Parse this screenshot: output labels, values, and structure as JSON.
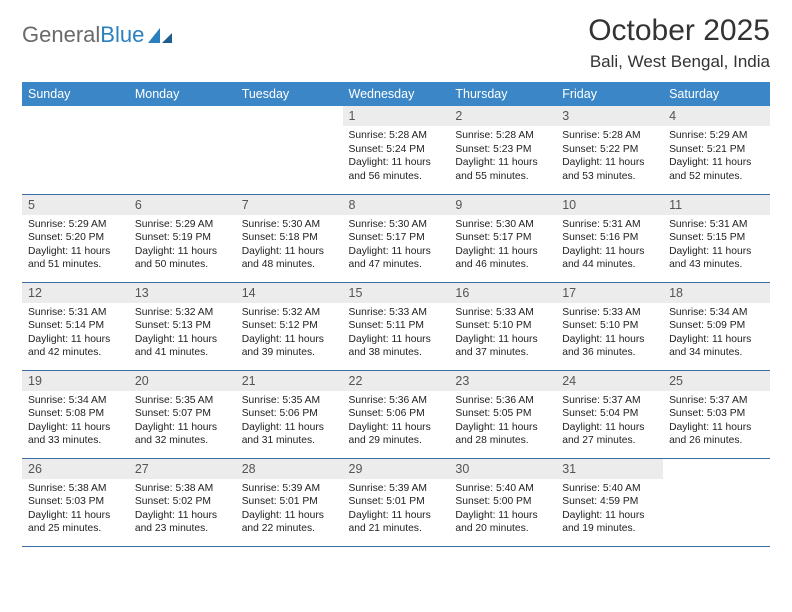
{
  "logo": {
    "text1": "General",
    "text2": "Blue"
  },
  "header": {
    "month": "October 2025",
    "location": "Bali, West Bengal, India"
  },
  "colors": {
    "header_bg": "#3b86c6",
    "header_fg": "#ffffff",
    "daynum_bg": "#ececec",
    "row_border": "#3b6da0",
    "logo_gray": "#6a6a6a",
    "logo_blue": "#2a7fbf"
  },
  "weekdays": [
    "Sunday",
    "Monday",
    "Tuesday",
    "Wednesday",
    "Thursday",
    "Friday",
    "Saturday"
  ],
  "weeks": [
    [
      {
        "n": "",
        "lines": []
      },
      {
        "n": "",
        "lines": []
      },
      {
        "n": "",
        "lines": []
      },
      {
        "n": "1",
        "lines": [
          "Sunrise: 5:28 AM",
          "Sunset: 5:24 PM",
          "Daylight: 11 hours",
          "and 56 minutes."
        ]
      },
      {
        "n": "2",
        "lines": [
          "Sunrise: 5:28 AM",
          "Sunset: 5:23 PM",
          "Daylight: 11 hours",
          "and 55 minutes."
        ]
      },
      {
        "n": "3",
        "lines": [
          "Sunrise: 5:28 AM",
          "Sunset: 5:22 PM",
          "Daylight: 11 hours",
          "and 53 minutes."
        ]
      },
      {
        "n": "4",
        "lines": [
          "Sunrise: 5:29 AM",
          "Sunset: 5:21 PM",
          "Daylight: 11 hours",
          "and 52 minutes."
        ]
      }
    ],
    [
      {
        "n": "5",
        "lines": [
          "Sunrise: 5:29 AM",
          "Sunset: 5:20 PM",
          "Daylight: 11 hours",
          "and 51 minutes."
        ]
      },
      {
        "n": "6",
        "lines": [
          "Sunrise: 5:29 AM",
          "Sunset: 5:19 PM",
          "Daylight: 11 hours",
          "and 50 minutes."
        ]
      },
      {
        "n": "7",
        "lines": [
          "Sunrise: 5:30 AM",
          "Sunset: 5:18 PM",
          "Daylight: 11 hours",
          "and 48 minutes."
        ]
      },
      {
        "n": "8",
        "lines": [
          "Sunrise: 5:30 AM",
          "Sunset: 5:17 PM",
          "Daylight: 11 hours",
          "and 47 minutes."
        ]
      },
      {
        "n": "9",
        "lines": [
          "Sunrise: 5:30 AM",
          "Sunset: 5:17 PM",
          "Daylight: 11 hours",
          "and 46 minutes."
        ]
      },
      {
        "n": "10",
        "lines": [
          "Sunrise: 5:31 AM",
          "Sunset: 5:16 PM",
          "Daylight: 11 hours",
          "and 44 minutes."
        ]
      },
      {
        "n": "11",
        "lines": [
          "Sunrise: 5:31 AM",
          "Sunset: 5:15 PM",
          "Daylight: 11 hours",
          "and 43 minutes."
        ]
      }
    ],
    [
      {
        "n": "12",
        "lines": [
          "Sunrise: 5:31 AM",
          "Sunset: 5:14 PM",
          "Daylight: 11 hours",
          "and 42 minutes."
        ]
      },
      {
        "n": "13",
        "lines": [
          "Sunrise: 5:32 AM",
          "Sunset: 5:13 PM",
          "Daylight: 11 hours",
          "and 41 minutes."
        ]
      },
      {
        "n": "14",
        "lines": [
          "Sunrise: 5:32 AM",
          "Sunset: 5:12 PM",
          "Daylight: 11 hours",
          "and 39 minutes."
        ]
      },
      {
        "n": "15",
        "lines": [
          "Sunrise: 5:33 AM",
          "Sunset: 5:11 PM",
          "Daylight: 11 hours",
          "and 38 minutes."
        ]
      },
      {
        "n": "16",
        "lines": [
          "Sunrise: 5:33 AM",
          "Sunset: 5:10 PM",
          "Daylight: 11 hours",
          "and 37 minutes."
        ]
      },
      {
        "n": "17",
        "lines": [
          "Sunrise: 5:33 AM",
          "Sunset: 5:10 PM",
          "Daylight: 11 hours",
          "and 36 minutes."
        ]
      },
      {
        "n": "18",
        "lines": [
          "Sunrise: 5:34 AM",
          "Sunset: 5:09 PM",
          "Daylight: 11 hours",
          "and 34 minutes."
        ]
      }
    ],
    [
      {
        "n": "19",
        "lines": [
          "Sunrise: 5:34 AM",
          "Sunset: 5:08 PM",
          "Daylight: 11 hours",
          "and 33 minutes."
        ]
      },
      {
        "n": "20",
        "lines": [
          "Sunrise: 5:35 AM",
          "Sunset: 5:07 PM",
          "Daylight: 11 hours",
          "and 32 minutes."
        ]
      },
      {
        "n": "21",
        "lines": [
          "Sunrise: 5:35 AM",
          "Sunset: 5:06 PM",
          "Daylight: 11 hours",
          "and 31 minutes."
        ]
      },
      {
        "n": "22",
        "lines": [
          "Sunrise: 5:36 AM",
          "Sunset: 5:06 PM",
          "Daylight: 11 hours",
          "and 29 minutes."
        ]
      },
      {
        "n": "23",
        "lines": [
          "Sunrise: 5:36 AM",
          "Sunset: 5:05 PM",
          "Daylight: 11 hours",
          "and 28 minutes."
        ]
      },
      {
        "n": "24",
        "lines": [
          "Sunrise: 5:37 AM",
          "Sunset: 5:04 PM",
          "Daylight: 11 hours",
          "and 27 minutes."
        ]
      },
      {
        "n": "25",
        "lines": [
          "Sunrise: 5:37 AM",
          "Sunset: 5:03 PM",
          "Daylight: 11 hours",
          "and 26 minutes."
        ]
      }
    ],
    [
      {
        "n": "26",
        "lines": [
          "Sunrise: 5:38 AM",
          "Sunset: 5:03 PM",
          "Daylight: 11 hours",
          "and 25 minutes."
        ]
      },
      {
        "n": "27",
        "lines": [
          "Sunrise: 5:38 AM",
          "Sunset: 5:02 PM",
          "Daylight: 11 hours",
          "and 23 minutes."
        ]
      },
      {
        "n": "28",
        "lines": [
          "Sunrise: 5:39 AM",
          "Sunset: 5:01 PM",
          "Daylight: 11 hours",
          "and 22 minutes."
        ]
      },
      {
        "n": "29",
        "lines": [
          "Sunrise: 5:39 AM",
          "Sunset: 5:01 PM",
          "Daylight: 11 hours",
          "and 21 minutes."
        ]
      },
      {
        "n": "30",
        "lines": [
          "Sunrise: 5:40 AM",
          "Sunset: 5:00 PM",
          "Daylight: 11 hours",
          "and 20 minutes."
        ]
      },
      {
        "n": "31",
        "lines": [
          "Sunrise: 5:40 AM",
          "Sunset: 4:59 PM",
          "Daylight: 11 hours",
          "and 19 minutes."
        ]
      },
      {
        "n": "",
        "lines": []
      }
    ]
  ]
}
